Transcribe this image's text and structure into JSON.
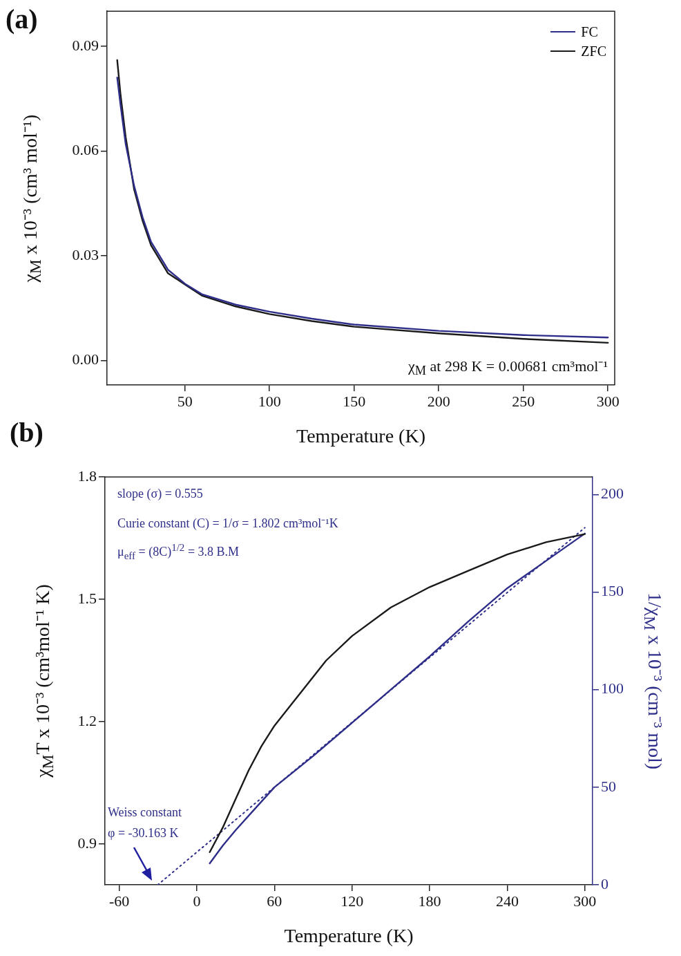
{
  "chart_data": [
    {
      "type": "line",
      "title": "(a)",
      "xlabel": "Temperature (K)",
      "ylabel": "χ$_{M}$ x 10⁻³ (cm³ mol⁻¹)",
      "xlim": [
        4,
        304
      ],
      "xticks": [
        50,
        100,
        150,
        200,
        250,
        300
      ],
      "ylim": [
        -0.007,
        0.1
      ],
      "yticks": [
        {
          "value": 0,
          "label": "0.00"
        },
        {
          "value": 0.03,
          "label": "0.03"
        },
        {
          "value": 0.06,
          "label": "0.06"
        },
        {
          "value": 0.09,
          "label": "0.09"
        }
      ],
      "grid": false,
      "legend": "top right",
      "x": [
        10,
        12,
        15,
        20,
        25,
        30,
        40,
        50,
        60,
        80,
        100,
        125,
        150,
        200,
        250,
        300
      ],
      "series": [
        {
          "name": "FC",
          "color": "#2e2e8a",
          "values": [
            0.081,
            0.073,
            0.062,
            0.05,
            0.041,
            0.034,
            0.026,
            0.022,
            0.019,
            0.016,
            0.014,
            0.012,
            0.0103,
            0.0085,
            0.0073,
            0.0066
          ]
        },
        {
          "name": "ZFC",
          "color": "#1a1a1a",
          "values": [
            0.086,
            0.076,
            0.064,
            0.049,
            0.04,
            0.033,
            0.025,
            0.0218,
            0.0186,
            0.0155,
            0.0133,
            0.0113,
            0.0097,
            0.0078,
            0.0062,
            0.0051
          ]
        }
      ],
      "annotations": [
        "χ$_{M}$ at 298 K = 0.00681 cm³mol⁻¹"
      ]
    },
    {
      "type": "line",
      "title": "(b)",
      "xlabel": "Temperature (K)",
      "ylabel": "χ$_{M}$T x 10⁻³ (cm³mol⁻¹ K)",
      "y2label": "1/χ$_{M}$ x 10⁻³ (cm⁻³ mol)",
      "xlim": [
        -71,
        306
      ],
      "xticks": [
        -60,
        0,
        60,
        120,
        180,
        240,
        300
      ],
      "ylim": [
        0.8,
        1.8
      ],
      "yticks": [
        0.9,
        1.2,
        1.5,
        1.8
      ],
      "y2lim": [
        0,
        209
      ],
      "y2ticks": [
        0,
        50,
        100,
        150,
        200
      ],
      "grid": false,
      "series": [
        {
          "color": "#1a1a1a",
          "x": [
            10,
            20,
            30,
            40,
            50,
            60,
            80,
            100,
            120,
            150,
            180,
            210,
            240,
            270,
            300
          ],
          "values": [
            0.88,
            0.94,
            1.01,
            1.08,
            1.14,
            1.19,
            1.27,
            1.35,
            1.41,
            1.48,
            1.53,
            1.57,
            1.61,
            1.64,
            1.66
          ]
        },
        {
          "color": "#2e2e8a",
          "axis": "y2",
          "x": [
            10,
            20,
            30,
            45,
            60,
            90,
            120,
            150,
            180,
            210,
            240,
            270,
            300
          ],
          "values": [
            11,
            20,
            28,
            39,
            50,
            66,
            83,
            100,
            117,
            135,
            152,
            166,
            180
          ]
        },
        {
          "type": "line",
          "color": "#2e2e8a",
          "axis": "y2",
          "line_style": "dotted",
          "x": [
            -30.163,
            300
          ],
          "values": [
            0,
            183
          ]
        }
      ],
      "annotations": [
        "slope (σ) = 0.555",
        "Curie constant (C) = 1/σ = 1.802 cm³mol⁻¹K",
        "μ$_{eff}$ = (8C)$^{1/2}$ = 3.8 B.M",
        "Weiss constant",
        "φ = -30.163 K"
      ]
    }
  ]
}
